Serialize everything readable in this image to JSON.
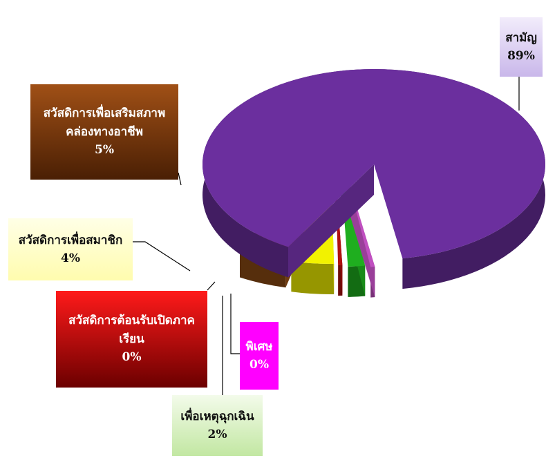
{
  "chart_data": {
    "type": "pie",
    "slices": [
      {
        "key": "saman",
        "label": "สามัญ",
        "value_label": "89%",
        "value": 89.0,
        "color": "#6b2f9e"
      },
      {
        "key": "special",
        "label": "พิเศษ",
        "value_label": "0%",
        "value": 0.4,
        "color": "#c04fc0"
      },
      {
        "key": "emergency",
        "label": "เพื่อเหตุฉุกเฉิน",
        "value_label": "2%",
        "value": 1.6,
        "color": "#1fae1f"
      },
      {
        "key": "semester_welfare",
        "label": "สวัสดิการต้อนรับเปิดภาคเรียน",
        "label_lines": [
          "สวัสดิการต้อนรับเปิดภาค",
          "เรียน"
        ],
        "value_label": "0%",
        "value": 0.4,
        "color": "#b01010"
      },
      {
        "key": "member_welfare",
        "label": "สวัสดิการเพื่อสมาชิก",
        "value_label": "4%",
        "value": 4.0,
        "color": "#f2f200"
      },
      {
        "key": "welfare_career",
        "label": "สวัสดิการเพื่อเสริมสภาพคล่องทางอาชีพ",
        "label_lines": [
          "สวัสดิการเพื่อเสริมสภาพ",
          "คล่องทางอาชีพ"
        ],
        "value_label": "5%",
        "value": 4.6,
        "color": "#8a4a14"
      }
    ]
  }
}
